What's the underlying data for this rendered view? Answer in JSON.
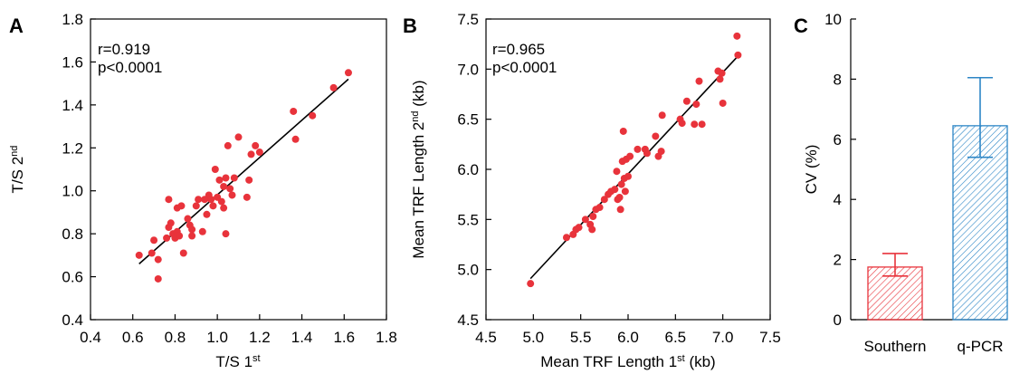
{
  "chart_data": [
    {
      "panel_label": "A",
      "type": "scatter",
      "xlabel": {
        "base": "T/S 1",
        "sup": "st"
      },
      "ylabel": {
        "base": "T/S 2",
        "sup": "nd"
      },
      "xlim": [
        0.4,
        1.8
      ],
      "ylim": [
        0.4,
        1.8
      ],
      "xticks": [
        0.4,
        0.6,
        0.8,
        1.0,
        1.2,
        1.4,
        1.6,
        1.8
      ],
      "yticks": [
        0.4,
        0.6,
        0.8,
        1.0,
        1.2,
        1.4,
        1.6,
        1.8
      ],
      "xtick_labels": [
        "0.4",
        "0.6",
        "0.8",
        "1.0",
        "1.2",
        "1.4",
        "1.6",
        "1.8"
      ],
      "ytick_labels": [
        "0.4",
        "0.6",
        "0.8",
        "1.0",
        "1.2",
        "1.4",
        "1.6",
        "1.8"
      ],
      "annotations": [
        "r=0.919",
        "p<0.0001"
      ],
      "fit_line": [
        [
          0.63,
          0.66
        ],
        [
          1.62,
          1.52
        ]
      ],
      "points": [
        [
          0.63,
          0.7
        ],
        [
          0.69,
          0.71
        ],
        [
          0.7,
          0.77
        ],
        [
          0.72,
          0.59
        ],
        [
          0.72,
          0.68
        ],
        [
          0.76,
          0.78
        ],
        [
          0.77,
          0.83
        ],
        [
          0.77,
          0.96
        ],
        [
          0.78,
          0.85
        ],
        [
          0.79,
          0.8
        ],
        [
          0.8,
          0.78
        ],
        [
          0.81,
          0.81
        ],
        [
          0.81,
          0.92
        ],
        [
          0.82,
          0.79
        ],
        [
          0.83,
          0.93
        ],
        [
          0.84,
          0.71
        ],
        [
          0.86,
          0.87
        ],
        [
          0.87,
          0.84
        ],
        [
          0.88,
          0.82
        ],
        [
          0.88,
          0.79
        ],
        [
          0.9,
          0.93
        ],
        [
          0.91,
          0.96
        ],
        [
          0.93,
          0.81
        ],
        [
          0.94,
          0.96
        ],
        [
          0.95,
          0.89
        ],
        [
          0.96,
          0.98
        ],
        [
          0.97,
          0.96
        ],
        [
          0.98,
          0.93
        ],
        [
          0.99,
          1.1
        ],
        [
          1.0,
          0.97
        ],
        [
          1.01,
          1.05
        ],
        [
          1.02,
          0.95
        ],
        [
          1.03,
          0.92
        ],
        [
          1.03,
          1.02
        ],
        [
          1.04,
          1.06
        ],
        [
          1.04,
          0.8
        ],
        [
          1.05,
          1.21
        ],
        [
          1.06,
          1.01
        ],
        [
          1.07,
          0.98
        ],
        [
          1.08,
          1.06
        ],
        [
          1.1,
          1.25
        ],
        [
          1.14,
          0.97
        ],
        [
          1.15,
          1.05
        ],
        [
          1.16,
          1.17
        ],
        [
          1.18,
          1.21
        ],
        [
          1.2,
          1.18
        ],
        [
          1.36,
          1.37
        ],
        [
          1.37,
          1.24
        ],
        [
          1.45,
          1.35
        ],
        [
          1.55,
          1.48
        ],
        [
          1.62,
          1.55
        ]
      ]
    },
    {
      "panel_label": "B",
      "type": "scatter",
      "xlabel": {
        "base": "Mean TRF Length 1",
        "sup": "st",
        "suffix": " (kb)"
      },
      "ylabel": {
        "base": "Mean TRF Length 2",
        "sup": "nd",
        "suffix": " (kb)"
      },
      "xlim": [
        4.5,
        7.5
      ],
      "ylim": [
        4.5,
        7.5
      ],
      "xticks": [
        4.5,
        5.0,
        5.5,
        6.0,
        6.5,
        7.0,
        7.5
      ],
      "yticks": [
        4.5,
        5.0,
        5.5,
        6.0,
        6.5,
        7.0,
        7.5
      ],
      "xtick_labels": [
        "4.5",
        "5.0",
        "5.5",
        "6.0",
        "6.5",
        "7.0",
        "7.5"
      ],
      "ytick_labels": [
        "4.5",
        "5.0",
        "5.5",
        "6.0",
        "6.5",
        "7.0",
        "7.5"
      ],
      "annotations": [
        "r=0.965",
        "p<0.0001"
      ],
      "fit_line": [
        [
          4.97,
          4.91
        ],
        [
          7.15,
          7.12
        ]
      ],
      "points": [
        [
          4.97,
          4.86
        ],
        [
          5.35,
          5.32
        ],
        [
          5.42,
          5.35
        ],
        [
          5.45,
          5.4
        ],
        [
          5.48,
          5.42
        ],
        [
          5.55,
          5.5
        ],
        [
          5.6,
          5.45
        ],
        [
          5.62,
          5.4
        ],
        [
          5.63,
          5.53
        ],
        [
          5.66,
          5.6
        ],
        [
          5.7,
          5.62
        ],
        [
          5.75,
          5.7
        ],
        [
          5.79,
          5.75
        ],
        [
          5.82,
          5.78
        ],
        [
          5.86,
          5.8
        ],
        [
          5.88,
          5.98
        ],
        [
          5.89,
          5.7
        ],
        [
          5.91,
          5.72
        ],
        [
          5.92,
          5.6
        ],
        [
          5.93,
          5.85
        ],
        [
          5.94,
          6.08
        ],
        [
          5.95,
          6.38
        ],
        [
          5.96,
          5.91
        ],
        [
          5.97,
          5.78
        ],
        [
          5.98,
          6.1
        ],
        [
          6.0,
          5.93
        ],
        [
          6.02,
          6.13
        ],
        [
          6.1,
          6.2
        ],
        [
          6.18,
          6.2
        ],
        [
          6.2,
          6.16
        ],
        [
          6.29,
          6.33
        ],
        [
          6.32,
          6.13
        ],
        [
          6.35,
          6.18
        ],
        [
          6.36,
          6.54
        ],
        [
          6.55,
          6.5
        ],
        [
          6.57,
          6.46
        ],
        [
          6.62,
          6.68
        ],
        [
          6.7,
          6.45
        ],
        [
          6.72,
          6.65
        ],
        [
          6.75,
          6.88
        ],
        [
          6.78,
          6.45
        ],
        [
          6.95,
          6.98
        ],
        [
          6.97,
          6.9
        ],
        [
          6.99,
          6.96
        ],
        [
          7.0,
          6.66
        ],
        [
          7.15,
          7.33
        ],
        [
          7.16,
          7.14
        ]
      ]
    },
    {
      "panel_label": "C",
      "type": "bar",
      "categories": [
        "Southern",
        "q-PCR"
      ],
      "values": [
        1.75,
        6.45
      ],
      "errors": [
        [
          1.45,
          2.2
        ],
        [
          5.4,
          8.05
        ]
      ],
      "colors": [
        "#e8333b",
        "#2d86c6"
      ],
      "ylabel": "CV (%)",
      "ylim": [
        0,
        10
      ],
      "yticks": [
        0,
        2,
        4,
        6,
        8,
        10
      ],
      "ytick_labels": [
        "0",
        "2",
        "4",
        "6",
        "8",
        "10"
      ]
    }
  ],
  "colors": {
    "points": "#e8333b",
    "fit_line": "#000000"
  }
}
